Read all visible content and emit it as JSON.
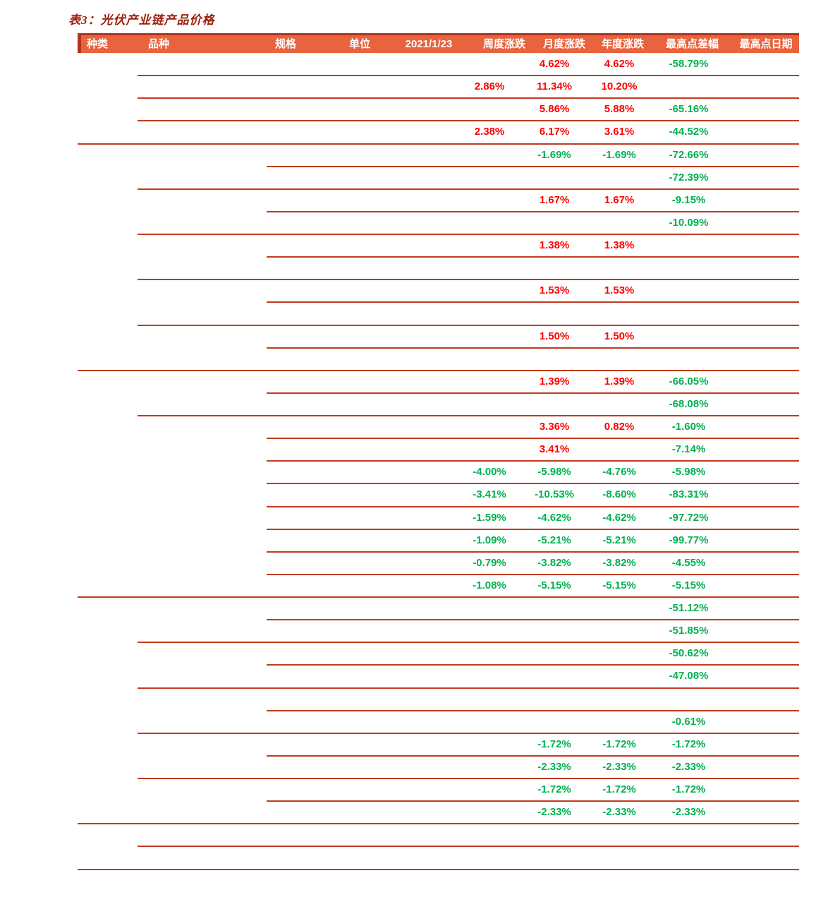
{
  "title": "表3：光伏产业链产品价格",
  "colors": {
    "positive_value": "#FF0000",
    "negative_value": "#00B050",
    "header_bg": "#E8633E",
    "header_edge": "#B0341F",
    "rule_line": "#C23A1E",
    "title_text": "#9C1E0C",
    "header_text": "#FFFFFF"
  },
  "table": {
    "columns": [
      {
        "key": "category",
        "label": "种类"
      },
      {
        "key": "variety",
        "label": "品种"
      },
      {
        "key": "spec",
        "label": "规格"
      },
      {
        "key": "unit",
        "label": "单位"
      },
      {
        "key": "price",
        "label": "2021/1/23"
      },
      {
        "key": "weekly",
        "label": "周度涨跌"
      },
      {
        "key": "monthly",
        "label": "月度涨跌"
      },
      {
        "key": "yearly",
        "label": "年度涨跌"
      },
      {
        "key": "peak_diff",
        "label": "最高点差幅"
      },
      {
        "key": "peak_date",
        "label": "最高点日期"
      }
    ],
    "rows": [
      {
        "weekly": "",
        "monthly": "4.62%",
        "yearly": "4.62%",
        "peak_diff": "-58.79%",
        "rule_below": "variety"
      },
      {
        "weekly": "2.86%",
        "monthly": "11.34%",
        "yearly": "10.20%",
        "peak_diff": "",
        "rule_below": "variety"
      },
      {
        "weekly": "",
        "monthly": "5.86%",
        "yearly": "5.88%",
        "peak_diff": "-65.16%",
        "rule_below": "variety"
      },
      {
        "weekly": "2.38%",
        "monthly": "6.17%",
        "yearly": "3.61%",
        "peak_diff": "-44.52%",
        "rule_below": "category"
      },
      {
        "weekly": "",
        "monthly": "-1.69%",
        "yearly": "-1.69%",
        "peak_diff": "-72.66%",
        "rule_below": "spec"
      },
      {
        "weekly": "",
        "monthly": "",
        "yearly": "",
        "peak_diff": "-72.39%",
        "rule_below": "variety"
      },
      {
        "weekly": "",
        "monthly": "1.67%",
        "yearly": "1.67%",
        "peak_diff": "-9.15%",
        "rule_below": "spec"
      },
      {
        "weekly": "",
        "monthly": "",
        "yearly": "",
        "peak_diff": "-10.09%",
        "rule_below": "variety"
      },
      {
        "weekly": "",
        "monthly": "1.38%",
        "yearly": "1.38%",
        "peak_diff": "",
        "rule_below": "spec"
      },
      {
        "weekly": "",
        "monthly": "",
        "yearly": "",
        "peak_diff": "",
        "rule_below": "variety"
      },
      {
        "weekly": "",
        "monthly": "1.53%",
        "yearly": "1.53%",
        "peak_diff": "",
        "rule_below": "spec"
      },
      {
        "weekly": "",
        "monthly": "",
        "yearly": "",
        "peak_diff": "",
        "rule_below": "variety"
      },
      {
        "weekly": "",
        "monthly": "1.50%",
        "yearly": "1.50%",
        "peak_diff": "",
        "rule_below": "spec"
      },
      {
        "weekly": "",
        "monthly": "",
        "yearly": "",
        "peak_diff": "",
        "rule_below": "category"
      },
      {
        "weekly": "",
        "monthly": "1.39%",
        "yearly": "1.39%",
        "peak_diff": "-66.05%",
        "rule_below": "spec"
      },
      {
        "weekly": "",
        "monthly": "",
        "yearly": "",
        "peak_diff": "-68.08%",
        "rule_below": "variety"
      },
      {
        "weekly": "",
        "monthly": "3.36%",
        "yearly": "0.82%",
        "peak_diff": "-1.60%",
        "rule_below": "spec"
      },
      {
        "weekly": "",
        "monthly": "3.41%",
        "yearly": "",
        "peak_diff": "-7.14%",
        "rule_below": "spec"
      },
      {
        "weekly": "-4.00%",
        "monthly": "-5.98%",
        "yearly": "-4.76%",
        "peak_diff": "-5.98%",
        "rule_below": "spec"
      },
      {
        "weekly": "-3.41%",
        "monthly": "-10.53%",
        "yearly": "-8.60%",
        "peak_diff": "-83.31%",
        "rule_below": "spec"
      },
      {
        "weekly": "-1.59%",
        "monthly": "-4.62%",
        "yearly": "-4.62%",
        "peak_diff": "-97.72%",
        "rule_below": "spec"
      },
      {
        "weekly": "-1.09%",
        "monthly": "-5.21%",
        "yearly": "-5.21%",
        "peak_diff": "-99.77%",
        "rule_below": "spec"
      },
      {
        "weekly": "-0.79%",
        "monthly": "-3.82%",
        "yearly": "-3.82%",
        "peak_diff": "-4.55%",
        "rule_below": "spec"
      },
      {
        "weekly": "-1.08%",
        "monthly": "-5.15%",
        "yearly": "-5.15%",
        "peak_diff": "-5.15%",
        "rule_below": "category"
      },
      {
        "weekly": "",
        "monthly": "",
        "yearly": "",
        "peak_diff": "-51.12%",
        "rule_below": "spec"
      },
      {
        "weekly": "",
        "monthly": "",
        "yearly": "",
        "peak_diff": "-51.85%",
        "rule_below": "variety"
      },
      {
        "weekly": "",
        "monthly": "",
        "yearly": "",
        "peak_diff": "-50.62%",
        "rule_below": "spec"
      },
      {
        "weekly": "",
        "monthly": "",
        "yearly": "",
        "peak_diff": "-47.08%",
        "rule_below": "variety"
      },
      {
        "weekly": "",
        "monthly": "",
        "yearly": "",
        "peak_diff": "",
        "rule_below": "spec"
      },
      {
        "weekly": "",
        "monthly": "",
        "yearly": "",
        "peak_diff": "-0.61%",
        "rule_below": "variety"
      },
      {
        "weekly": "",
        "monthly": "-1.72%",
        "yearly": "-1.72%",
        "peak_diff": "-1.72%",
        "rule_below": "spec"
      },
      {
        "weekly": "",
        "monthly": "-2.33%",
        "yearly": "-2.33%",
        "peak_diff": "-2.33%",
        "rule_below": "variety"
      },
      {
        "weekly": "",
        "monthly": "-1.72%",
        "yearly": "-1.72%",
        "peak_diff": "-1.72%",
        "rule_below": "spec"
      },
      {
        "weekly": "",
        "monthly": "-2.33%",
        "yearly": "-2.33%",
        "peak_diff": "-2.33%",
        "rule_below": "category"
      },
      {
        "weekly": "",
        "monthly": "",
        "yearly": "",
        "peak_diff": "",
        "rule_below": "variety"
      },
      {
        "weekly": "",
        "monthly": "",
        "yearly": "",
        "peak_diff": "",
        "rule_below": "category"
      }
    ]
  }
}
